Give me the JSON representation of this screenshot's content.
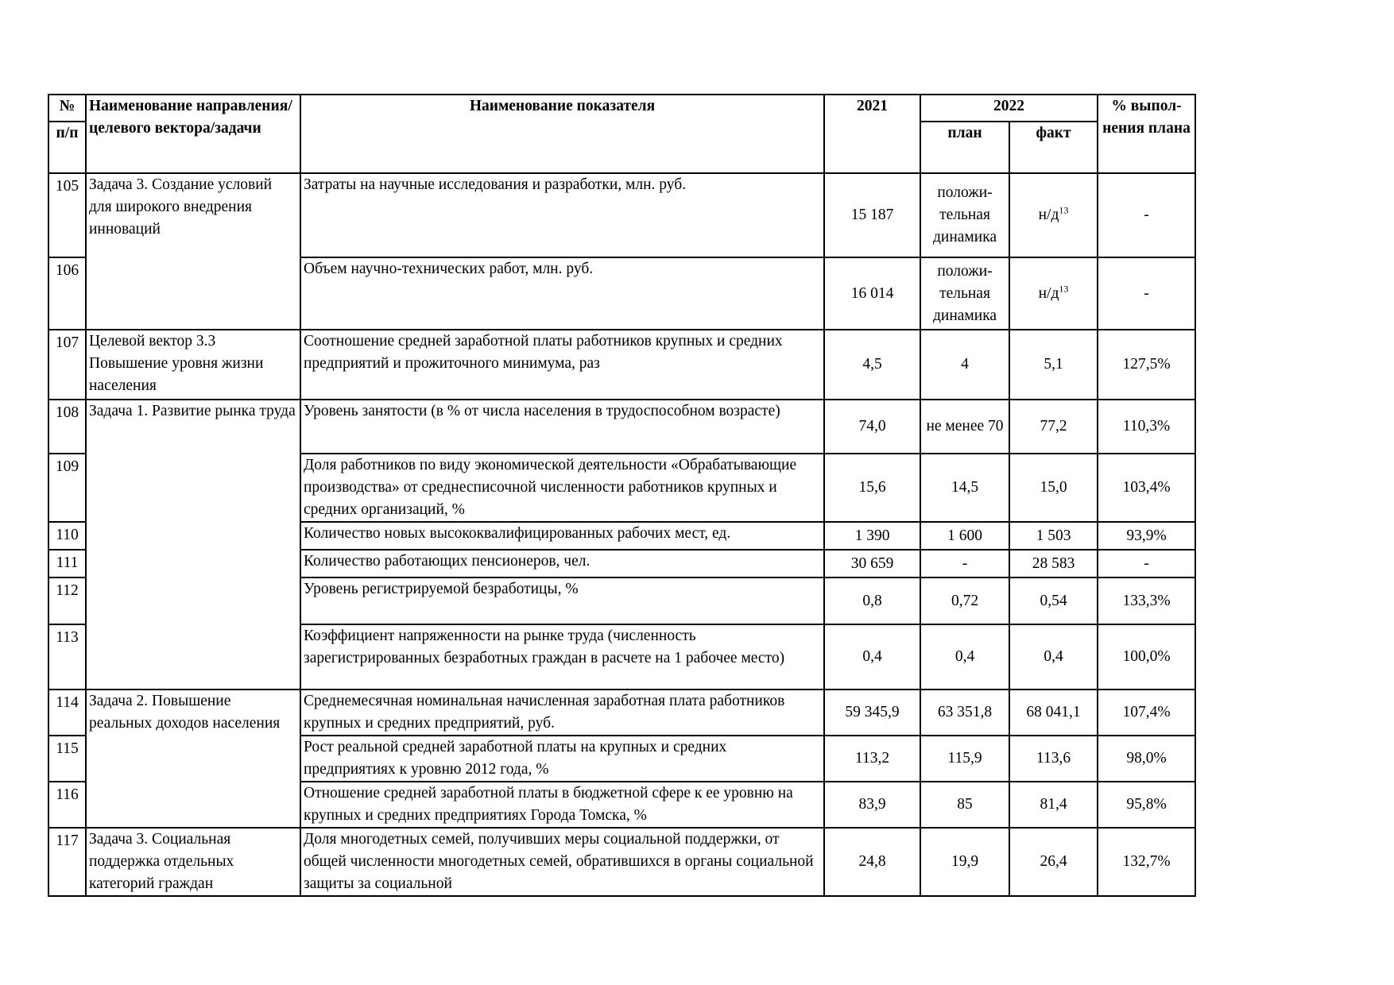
{
  "header": {
    "no_top": "№",
    "no_bottom": "п/п",
    "direction": "Наименование направления/целевого вектора/задачи",
    "indicator": "Наименование показателя",
    "y2021": "2021",
    "y2022": "2022",
    "plan": "план",
    "fact": "факт",
    "percent": "% выпол-нения плана"
  },
  "groups": [
    {
      "text": "Задача 3. Создание условий для широкого внедрения инноваций"
    },
    {
      "text": "Целевой вектор  3.3 Повышение уровня жизни населения"
    },
    {
      "text": "Задача 1. Развитие рынка труда"
    },
    {
      "text": "Задача  2.  Повышение реальных доходов населения"
    },
    {
      "text": "Задача  3.  Социальная поддержка отдельных категорий граждан"
    }
  ],
  "rows": [
    {
      "no": "105",
      "indicator": "Затраты на научные исследования и разработки, млн. руб.",
      "v2021": "15 187",
      "plan": "положи-тельная динамика",
      "fact": "н/д",
      "fact_sup": "13",
      "pct": "-"
    },
    {
      "no": "106",
      "indicator": "Объем научно-технических работ, млн. руб.",
      "v2021": "16 014",
      "plan": "положи-тельная динамика",
      "fact": "н/д",
      "fact_sup": "13",
      "pct": "-"
    },
    {
      "no": "107",
      "indicator": "Соотношение средней заработной платы работников крупных и средних предприятий и прожиточного минимума, раз",
      "v2021": "4,5",
      "plan": "4",
      "fact": "5,1",
      "pct": "127,5%"
    },
    {
      "no": "108",
      "indicator": "Уровень занятости (в % от числа населения в трудоспособном возрасте)",
      "v2021": "74,0",
      "plan": "не менее 70",
      "fact": "77,2",
      "pct": "110,3%"
    },
    {
      "no": "109",
      "indicator": "Доля работников по виду экономической деятельности «Обрабатывающие производства» от среднесписочной численности работников крупных и средних организаций, %",
      "v2021": "15,6",
      "plan": "14,5",
      "fact": "15,0",
      "pct": "103,4%"
    },
    {
      "no": "110",
      "indicator": "Количество новых высококвалифицированных рабочих мест, ед.",
      "v2021": "1 390",
      "plan": "1 600",
      "fact": "1 503",
      "pct": "93,9%"
    },
    {
      "no": "111",
      "indicator": "Количество работающих пенсионеров, чел.",
      "v2021": "30 659",
      "plan": "-",
      "fact": "28 583",
      "pct": "-"
    },
    {
      "no": "112",
      "indicator": "Уровень регистрируемой безработицы, %",
      "v2021": "0,8",
      "plan": "0,72",
      "fact": "0,54",
      "pct": "133,3%"
    },
    {
      "no": "113",
      "indicator": "Коэффициент напряженности на рынке труда (численность зарегистрированных безработных граждан в расчете на 1 рабочее место)",
      "v2021": "0,4",
      "plan": "0,4",
      "fact": "0,4",
      "pct": "100,0%"
    },
    {
      "no": "114",
      "indicator": "Среднемесячная номинальная начисленная заработная плата работников крупных и средних предприятий, руб.",
      "v2021": "59 345,9",
      "plan": "63 351,8",
      "fact": "68 041,1",
      "pct": "107,4%"
    },
    {
      "no": "115",
      "indicator": "Рост реальной средней заработной платы на крупных и средних предприятиях к уровню 2012 года, %",
      "v2021": "113,2",
      "plan": "115,9",
      "fact": "113,6",
      "pct": "98,0%"
    },
    {
      "no": "116",
      "indicator": "Отношение средней заработной платы в бюджетной сфере к ее уровню на крупных и средних предприятиях Города Томска, %",
      "v2021": "83,9",
      "plan": "85",
      "fact": "81,4",
      "pct": "95,8%"
    },
    {
      "no": "117",
      "indicator": "Доля многодетных семей, получивших меры социальной поддержки, от общей численности многодетных семей, обратившихся в органы социальной защиты за социальной",
      "v2021": "24,8",
      "plan": "19,9",
      "fact": "26,4",
      "pct": "132,7%"
    }
  ]
}
